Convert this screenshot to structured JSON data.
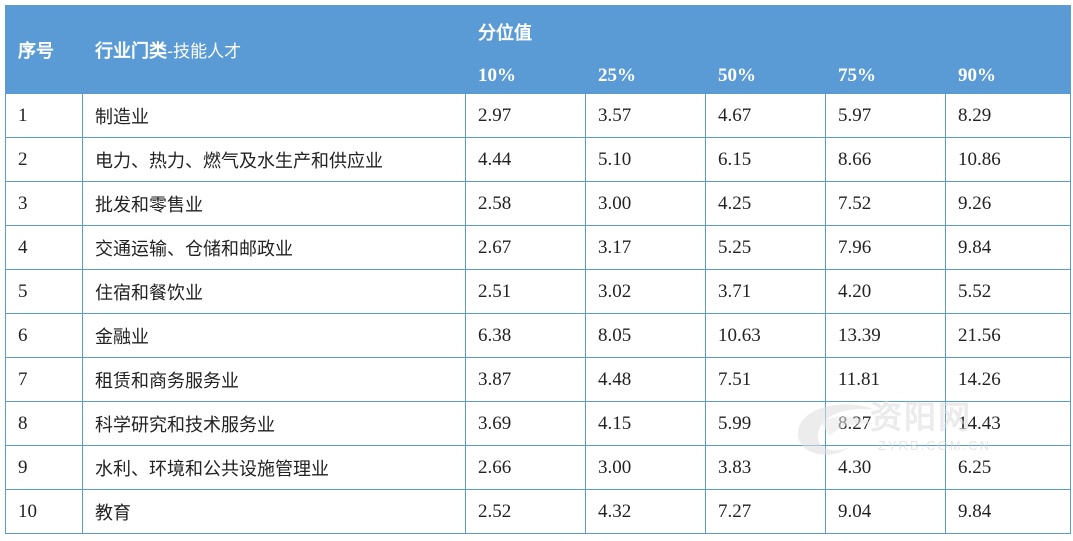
{
  "header": {
    "seq": "序号",
    "industry_main": "行业门类",
    "industry_sub": "-技能人才",
    "percentile_group": "分位值",
    "percentiles": [
      "10%",
      "25%",
      "50%",
      "75%",
      "90%"
    ]
  },
  "rows": [
    {
      "seq": "1",
      "industry": "制造业",
      "v": [
        "2.97",
        "3.57",
        "4.67",
        "5.97",
        "8.29"
      ]
    },
    {
      "seq": "2",
      "industry": "电力、热力、燃气及水生产和供应业",
      "v": [
        "4.44",
        "5.10",
        "6.15",
        "8.66",
        "10.86"
      ]
    },
    {
      "seq": "3",
      "industry": "批发和零售业",
      "v": [
        "2.58",
        "3.00",
        "4.25",
        "7.52",
        "9.26"
      ]
    },
    {
      "seq": "4",
      "industry": "交通运输、仓储和邮政业",
      "v": [
        "2.67",
        "3.17",
        "5.25",
        "7.96",
        "9.84"
      ]
    },
    {
      "seq": "5",
      "industry": "住宿和餐饮业",
      "v": [
        "2.51",
        "3.02",
        "3.71",
        "4.20",
        "5.52"
      ]
    },
    {
      "seq": "6",
      "industry": "金融业",
      "v": [
        "6.38",
        "8.05",
        "10.63",
        "13.39",
        "21.56"
      ]
    },
    {
      "seq": "7",
      "industry": "租赁和商务服务业",
      "v": [
        "3.87",
        "4.48",
        "7.51",
        "11.81",
        "14.26"
      ]
    },
    {
      "seq": "8",
      "industry": "科学研究和技术服务业",
      "v": [
        "3.69",
        "4.15",
        "5.99",
        "8.27",
        "14.43"
      ]
    },
    {
      "seq": "9",
      "industry": "水利、环境和公共设施管理业",
      "v": [
        "2.66",
        "3.00",
        "3.83",
        "4.30",
        "6.25"
      ]
    },
    {
      "seq": "10",
      "industry": "教育",
      "v": [
        "2.52",
        "4.32",
        "7.27",
        "9.04",
        "9.84"
      ]
    }
  ],
  "watermark": {
    "text": "资阳网",
    "url": "ZYRB.COM.CN"
  }
}
